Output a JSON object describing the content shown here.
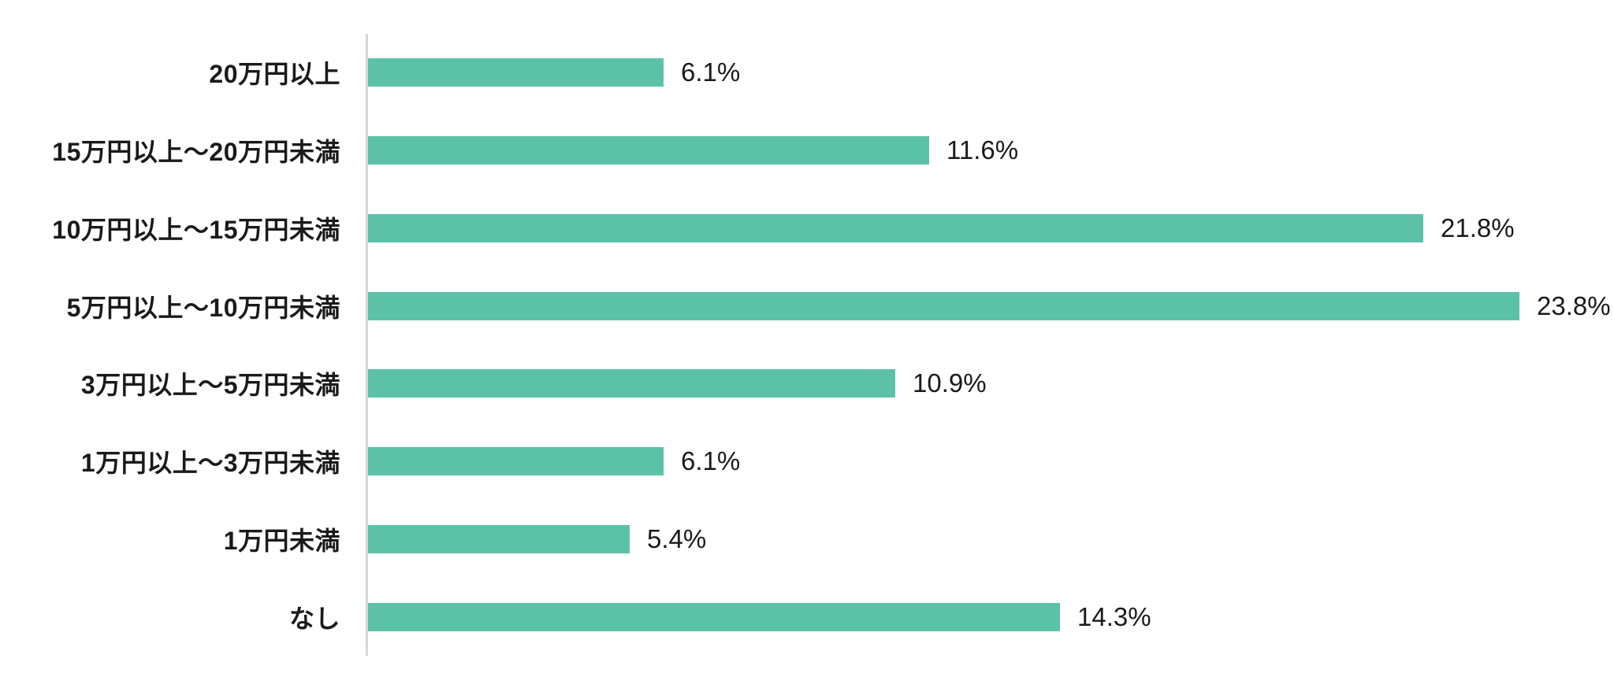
{
  "chart_data": {
    "type": "bar",
    "orientation": "horizontal",
    "title": "",
    "xlabel": "",
    "ylabel": "",
    "categories": [
      "20万円以上",
      "15万円以上〜20万円未満",
      "10万円以上〜15万円未満",
      "5万円以上〜10万円未満",
      "3万円以上〜5万円未満",
      "1万円以上〜3万円未満",
      "1万円未満",
      "なし"
    ],
    "values": [
      6.1,
      11.6,
      21.8,
      23.8,
      10.9,
      6.1,
      5.4,
      14.3
    ],
    "value_labels": [
      "6.1%",
      "11.6%",
      "21.8%",
      "23.8%",
      "10.9%",
      "6.1%",
      "5.4%",
      "14.3%"
    ],
    "xlim": [
      0,
      25
    ],
    "grid": false,
    "legend": null,
    "colors": {
      "bar": "#5bc2a8",
      "axis_line": "#d6d6d6",
      "text": "#1a1a1a",
      "background": "#ffffff"
    }
  }
}
